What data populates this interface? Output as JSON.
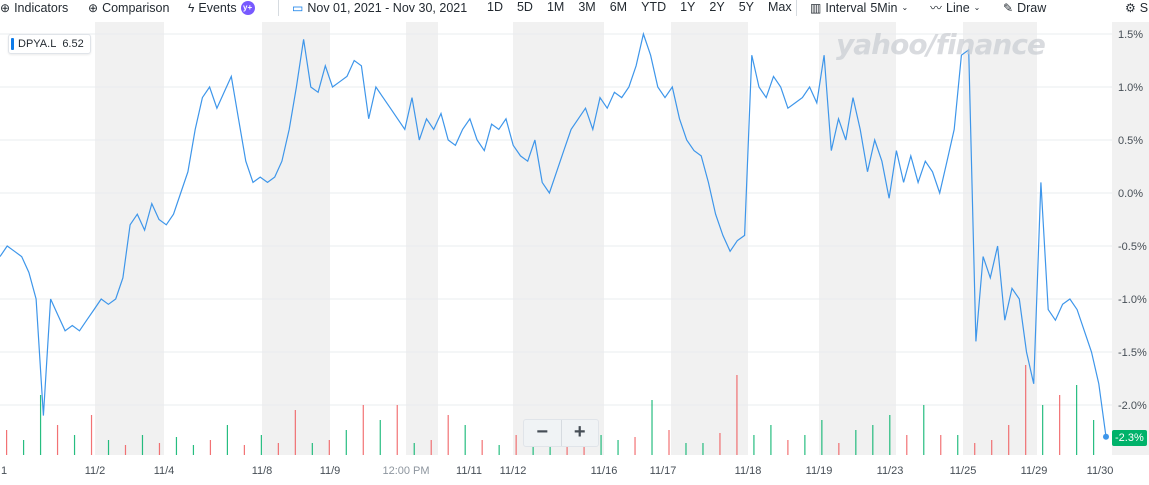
{
  "toolbar": {
    "indicators": "Indicators",
    "comparison": "Comparison",
    "events": "Events",
    "events_badge": "y+",
    "date_range": "Nov 01, 2021 - Nov 30, 2021",
    "ranges": [
      "1D",
      "5D",
      "1M",
      "3M",
      "6M",
      "YTD",
      "1Y",
      "2Y",
      "5Y",
      "Max"
    ],
    "interval_label": "Interval",
    "interval_value": "5Min",
    "chart_type": "Line",
    "draw": "Draw",
    "settings": "S"
  },
  "ticker": {
    "symbol": "DPYA.L",
    "price": "6.52"
  },
  "watermark": "yahoo/finance",
  "zoom": {
    "minus": "−",
    "plus": "+"
  },
  "last_change": "-2.3%",
  "colors": {
    "line": "#3e96ea",
    "up": "#00b26a",
    "down": "#f0595c",
    "band": "#f1f1f1",
    "badge": "#00b26a"
  },
  "chart_data": {
    "type": "line",
    "title": "",
    "xlabel": "",
    "ylabel": "",
    "ylim": [
      -2.3,
      1.6
    ],
    "y_unit": "%",
    "y_ticks": [
      1.5,
      1.0,
      0.5,
      0.0,
      -0.5,
      -1.0,
      -1.5,
      -2.0
    ],
    "y_tick_labels": [
      "1.5%",
      "1.0%",
      "0.5%",
      "0.0%",
      "-0.5%",
      "-1.0%",
      "-1.5%",
      "-2.0%"
    ],
    "x_tick_labels": [
      "1",
      "11/2",
      "11/4",
      "11/8",
      "11/9",
      "12:00 PM",
      "11/11",
      "11/12",
      "11/16",
      "11/17",
      "11/18",
      "11/19",
      "11/23",
      "11/25",
      "11/29",
      "11/30"
    ],
    "grid": true,
    "series": [
      {
        "values": [
          -0.6,
          -0.5,
          -0.55,
          -0.6,
          -0.75,
          -1.0,
          -2.1,
          -1.0,
          -1.15,
          -1.3,
          -1.25,
          -1.3,
          -1.2,
          -1.1,
          -1.0,
          -1.05,
          -1.0,
          -0.8,
          -0.3,
          -0.2,
          -0.35,
          -0.1,
          -0.25,
          -0.3,
          -0.2,
          0.0,
          0.2,
          0.6,
          0.9,
          1.0,
          0.8,
          0.95,
          1.1,
          0.7,
          0.3,
          0.1,
          0.15,
          0.1,
          0.15,
          0.3,
          0.6,
          1.0,
          1.45,
          1.0,
          0.95,
          1.2,
          1.0,
          1.05,
          1.1,
          1.25,
          1.2,
          0.7,
          1.0,
          0.9,
          0.8,
          0.7,
          0.6,
          0.9,
          0.5,
          0.7,
          0.6,
          0.75,
          0.5,
          0.45,
          0.6,
          0.7,
          0.5,
          0.4,
          0.65,
          0.6,
          0.7,
          0.45,
          0.35,
          0.3,
          0.5,
          0.1,
          0.0,
          0.2,
          0.4,
          0.6,
          0.7,
          0.8,
          0.6,
          0.9,
          0.8,
          0.95,
          0.9,
          1.0,
          1.2,
          1.5,
          1.3,
          1.0,
          0.9,
          1.0,
          0.7,
          0.5,
          0.4,
          0.35,
          0.1,
          -0.2,
          -0.4,
          -0.55,
          -0.45,
          -0.4,
          1.3,
          1.0,
          0.9,
          1.1,
          1.0,
          0.8,
          0.85,
          0.9,
          1.0,
          0.85,
          1.3,
          0.4,
          0.7,
          0.5,
          0.9,
          0.6,
          0.2,
          0.5,
          0.3,
          -0.05,
          0.4,
          0.1,
          0.35,
          0.1,
          0.3,
          0.2,
          0.0,
          0.3,
          0.6,
          1.3,
          1.35,
          -1.4,
          -0.6,
          -0.8,
          -0.5,
          -1.2,
          -0.9,
          -1.0,
          -1.5,
          -1.8,
          0.1,
          -1.1,
          -1.2,
          -1.05,
          -1.0,
          -1.1,
          -1.3,
          -1.5,
          -1.8,
          -2.3
        ]
      }
    ],
    "volume": [
      {
        "v": 0.25,
        "c": "down"
      },
      {
        "v": 0.15,
        "c": "up"
      },
      {
        "v": 0.6,
        "c": "up"
      },
      {
        "v": 0.3,
        "c": "down"
      },
      {
        "v": 0.2,
        "c": "up"
      },
      {
        "v": 0.4,
        "c": "down"
      },
      {
        "v": 0.15,
        "c": "up"
      },
      {
        "v": 0.1,
        "c": "down"
      },
      {
        "v": 0.2,
        "c": "up"
      },
      {
        "v": 0.12,
        "c": "down"
      },
      {
        "v": 0.18,
        "c": "up"
      },
      {
        "v": 0.1,
        "c": "up"
      },
      {
        "v": 0.15,
        "c": "down"
      },
      {
        "v": 0.3,
        "c": "up"
      },
      {
        "v": 0.1,
        "c": "down"
      },
      {
        "v": 0.2,
        "c": "up"
      },
      {
        "v": 0.12,
        "c": "down"
      },
      {
        "v": 0.45,
        "c": "down"
      },
      {
        "v": 0.12,
        "c": "up"
      },
      {
        "v": 0.15,
        "c": "down"
      },
      {
        "v": 0.25,
        "c": "up"
      },
      {
        "v": 0.5,
        "c": "down"
      },
      {
        "v": 0.35,
        "c": "up"
      },
      {
        "v": 0.5,
        "c": "down"
      },
      {
        "v": 0.12,
        "c": "up"
      },
      {
        "v": 0.15,
        "c": "down"
      },
      {
        "v": 0.4,
        "c": "down"
      },
      {
        "v": 0.3,
        "c": "up"
      },
      {
        "v": 0.15,
        "c": "down"
      },
      {
        "v": 0.1,
        "c": "up"
      },
      {
        "v": 0.2,
        "c": "down"
      },
      {
        "v": 0.25,
        "c": "up"
      },
      {
        "v": 0.15,
        "c": "up"
      },
      {
        "v": 0.12,
        "c": "down"
      },
      {
        "v": 0.3,
        "c": "down"
      },
      {
        "v": 0.2,
        "c": "up"
      },
      {
        "v": 0.15,
        "c": "up"
      },
      {
        "v": 0.18,
        "c": "down"
      },
      {
        "v": 0.55,
        "c": "up"
      },
      {
        "v": 0.25,
        "c": "down"
      },
      {
        "v": 0.12,
        "c": "up"
      },
      {
        "v": 0.12,
        "c": "up"
      },
      {
        "v": 0.22,
        "c": "down"
      },
      {
        "v": 0.8,
        "c": "down"
      },
      {
        "v": 0.2,
        "c": "up"
      },
      {
        "v": 0.3,
        "c": "up"
      },
      {
        "v": 0.15,
        "c": "down"
      },
      {
        "v": 0.2,
        "c": "up"
      },
      {
        "v": 0.35,
        "c": "up"
      },
      {
        "v": 0.12,
        "c": "down"
      },
      {
        "v": 0.25,
        "c": "up"
      },
      {
        "v": 0.3,
        "c": "up"
      },
      {
        "v": 0.4,
        "c": "up"
      },
      {
        "v": 0.2,
        "c": "down"
      },
      {
        "v": 0.5,
        "c": "up"
      },
      {
        "v": 0.2,
        "c": "down"
      },
      {
        "v": 0.2,
        "c": "up"
      },
      {
        "v": 0.12,
        "c": "down"
      },
      {
        "v": 0.15,
        "c": "down"
      },
      {
        "v": 0.3,
        "c": "down"
      },
      {
        "v": 0.9,
        "c": "down"
      },
      {
        "v": 0.5,
        "c": "up"
      },
      {
        "v": 0.6,
        "c": "down"
      },
      {
        "v": 0.7,
        "c": "up"
      },
      {
        "v": 0.35,
        "c": "up"
      }
    ]
  }
}
